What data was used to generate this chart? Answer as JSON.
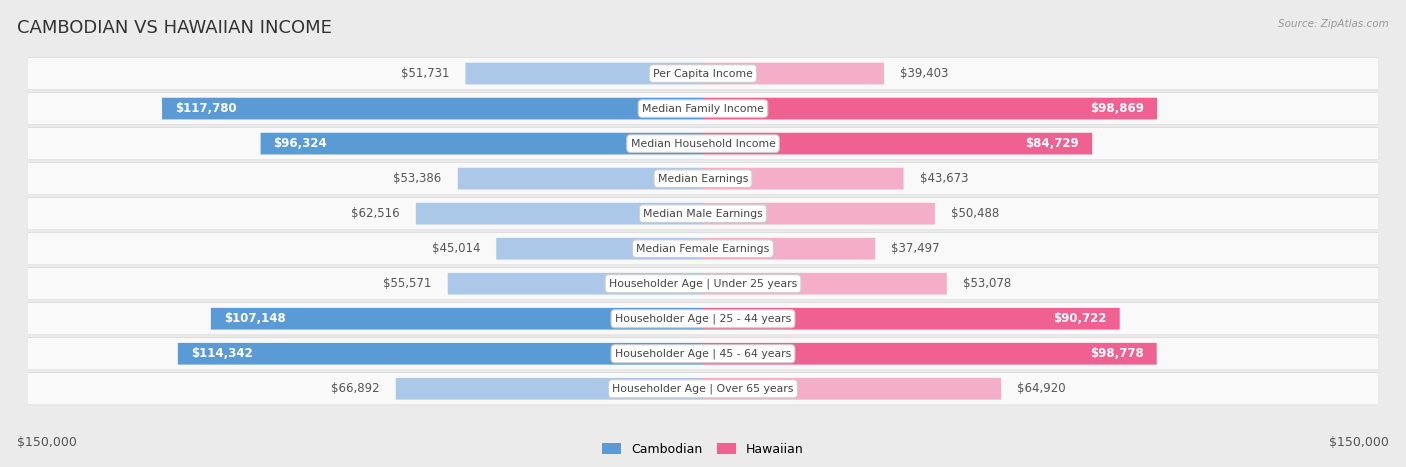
{
  "title": "CAMBODIAN VS HAWAIIAN INCOME",
  "source": "Source: ZipAtlas.com",
  "categories": [
    "Per Capita Income",
    "Median Family Income",
    "Median Household Income",
    "Median Earnings",
    "Median Male Earnings",
    "Median Female Earnings",
    "Householder Age | Under 25 years",
    "Householder Age | 25 - 44 years",
    "Householder Age | 45 - 64 years",
    "Householder Age | Over 65 years"
  ],
  "cambodian_values": [
    51731,
    117780,
    96324,
    53386,
    62516,
    45014,
    55571,
    107148,
    114342,
    66892
  ],
  "hawaiian_values": [
    39403,
    98869,
    84729,
    43673,
    50488,
    37497,
    53078,
    90722,
    98778,
    64920
  ],
  "cambodian_labels": [
    "$51,731",
    "$117,780",
    "$96,324",
    "$53,386",
    "$62,516",
    "$45,014",
    "$55,571",
    "$107,148",
    "$114,342",
    "$66,892"
  ],
  "hawaiian_labels": [
    "$39,403",
    "$98,869",
    "$84,729",
    "$43,673",
    "$50,488",
    "$37,497",
    "$53,078",
    "$90,722",
    "$98,778",
    "$64,920"
  ],
  "cambodian_color_light": "#abc8e8",
  "cambodian_color_dark": "#5b9bd5",
  "hawaiian_color_light": "#f5aec8",
  "hawaiian_color_dark": "#f06090",
  "background_color": "#ebebeb",
  "row_bg_color": "#f9f9f9",
  "row_border_color": "#d8d8d8",
  "max_value": 150000,
  "xlabel_left": "$150,000",
  "xlabel_right": "$150,000",
  "legend_cambodian": "Cambodian",
  "legend_hawaiian": "Hawaiian",
  "title_fontsize": 13,
  "label_fontsize": 8.5,
  "cat_fontsize": 7.8,
  "axis_fontsize": 9,
  "cam_dark_threshold": 70000,
  "haw_dark_threshold": 70000
}
